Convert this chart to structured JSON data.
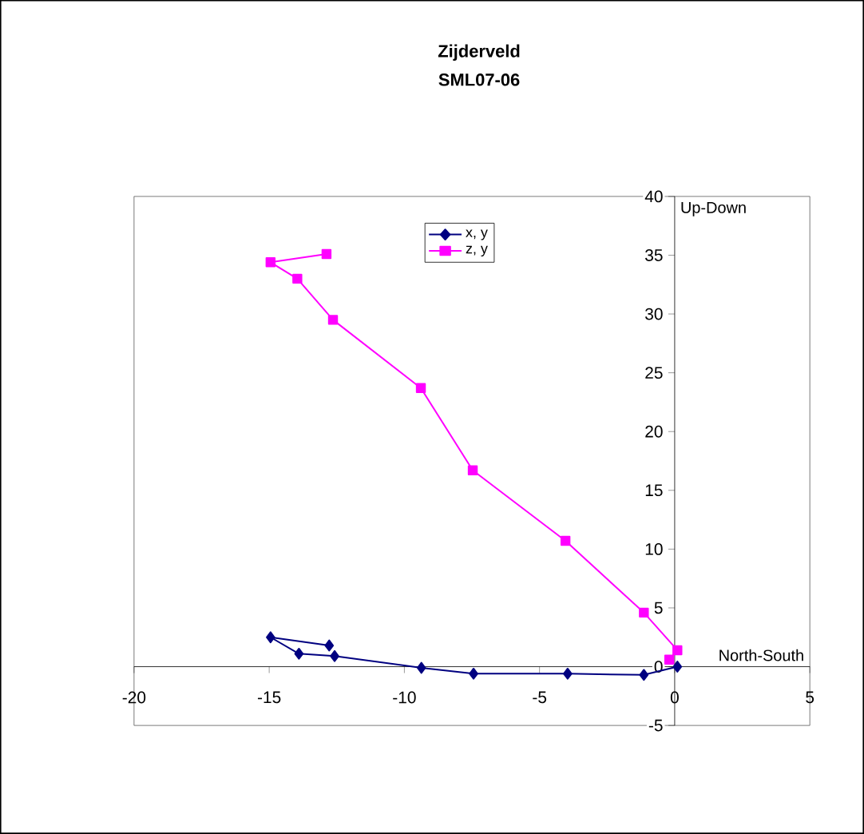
{
  "chart_data": {
    "type": "line",
    "title": "Zijderveld",
    "subtitle": "SML07-06",
    "xlabel": "North-South",
    "ylabel": "Up-Down",
    "xlim": [
      -20,
      5
    ],
    "ylim": [
      -5,
      40
    ],
    "xticks": [
      -20,
      -15,
      -10,
      -5,
      0,
      5
    ],
    "yticks": [
      -5,
      0,
      5,
      10,
      15,
      20,
      25,
      30,
      35,
      40
    ],
    "grid": false,
    "legend": "top",
    "line_style": "solid",
    "series": [
      {
        "name": "x, y",
        "color": "#000080",
        "marker": "diamond",
        "x": [
          0.1,
          -1.14,
          -3.96,
          -7.44,
          -9.37,
          -12.58,
          -13.9,
          -14.95,
          -12.78
        ],
        "values": [
          0.0,
          -0.7,
          -0.6,
          -0.6,
          -0.1,
          0.9,
          1.1,
          2.5,
          1.8
        ]
      },
      {
        "name": "z, y",
        "color": "#ff00ff",
        "marker": "square",
        "x": [
          -0.2,
          0.1,
          -1.14,
          -4.04,
          -7.47,
          -9.39,
          -12.64,
          -13.96,
          -14.95,
          -12.88
        ],
        "values": [
          0.6,
          1.4,
          4.6,
          10.7,
          16.7,
          23.7,
          29.5,
          33.0,
          34.4,
          35.1
        ]
      }
    ]
  }
}
